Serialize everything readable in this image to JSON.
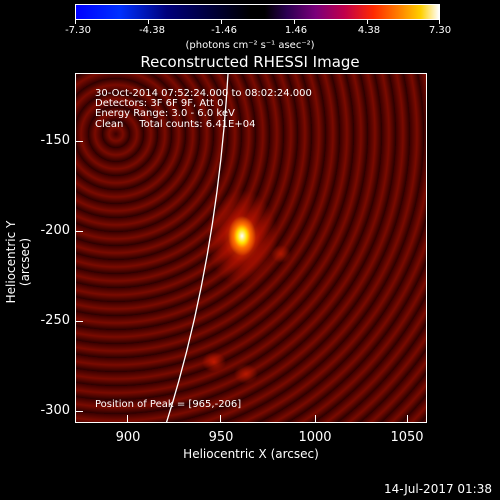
{
  "colorbar": {
    "tick_labels": [
      "-7.30",
      "-4.38",
      "-1.46",
      "1.46",
      "4.38",
      "7.30"
    ],
    "units": "(photons cm⁻² s⁻¹ asec⁻²)"
  },
  "title": "Reconstructed RHESSI Image",
  "info_lines": {
    "line1": "30-Oct-2014 07:52:24.000 to 08:02:24.000",
    "line2": "Detectors: 3F 6F 9F, Att 0",
    "line3": "Energy Range: 3.0 - 6.0 keV",
    "line4": "Clean     Total counts: 6.41E+04"
  },
  "peak_text": "Position of Peak = [965,-206]",
  "axes": {
    "xlabel": "Heliocentric X (arcsec)",
    "ylabel": "Heliocentric Y (arcsec)",
    "xticks": [
      "900",
      "950",
      "1000",
      "1050"
    ],
    "yticks": [
      "-150",
      "-200",
      "-250",
      "-300"
    ]
  },
  "timestamp": "14-Jul-2017 01:38",
  "colors": {
    "background": "#000000",
    "peak": "#ffffff",
    "limb": "#ffffff"
  }
}
